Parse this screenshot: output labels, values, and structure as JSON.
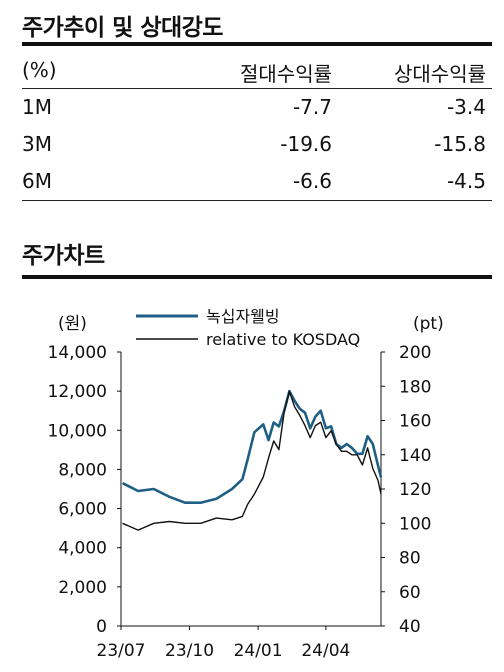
{
  "section1_title": "주가추이 및 상대강도",
  "table": {
    "headers": [
      "(%)",
      "절대수익률",
      "상대수익률"
    ],
    "rows": [
      {
        "period": "1M",
        "absolute": "-7.7",
        "relative": "-3.4"
      },
      {
        "period": "3M",
        "absolute": "-19.6",
        "relative": "-15.8"
      },
      {
        "period": "6M",
        "absolute": "-6.6",
        "relative": "-4.5"
      }
    ]
  },
  "section2_title": "주가차트",
  "chart_data": {
    "type": "line",
    "left_axis_label": "(원)",
    "right_axis_label": "(pt)",
    "left_ticks": [
      "14,000",
      "12,000",
      "10,000",
      "8,000",
      "6,000",
      "4,000",
      "2,000",
      "0"
    ],
    "right_ticks": [
      "200",
      "180",
      "160",
      "140",
      "120",
      "100",
      "80",
      "60",
      "40"
    ],
    "x_ticks": [
      "23/07",
      "23/10",
      "24/01",
      "24/04"
    ],
    "ylim_left": [
      0,
      14000
    ],
    "ylim_right": [
      40,
      200
    ],
    "series": [
      {
        "name": "녹십자웰빙",
        "axis": "left",
        "color": "#1f5f85",
        "x": [
          "2023-07-03",
          "2023-07-24",
          "2023-08-14",
          "2023-09-04",
          "2023-09-25",
          "2023-10-16",
          "2023-11-06",
          "2023-11-27",
          "2023-12-11",
          "2023-12-18",
          "2023-12-27",
          "2024-01-08",
          "2024-01-15",
          "2024-01-22",
          "2024-01-29",
          "2024-02-05",
          "2024-02-12",
          "2024-02-19",
          "2024-02-26",
          "2024-03-04",
          "2024-03-11",
          "2024-03-18",
          "2024-03-25",
          "2024-04-01",
          "2024-04-08",
          "2024-04-15",
          "2024-04-22",
          "2024-04-29",
          "2024-05-06",
          "2024-05-13",
          "2024-05-20",
          "2024-05-27",
          "2024-06-03",
          "2024-06-10",
          "2024-06-14"
        ],
        "values": [
          7300,
          6900,
          7000,
          6600,
          6300,
          6300,
          6500,
          7000,
          7500,
          8500,
          9900,
          10300,
          9500,
          10400,
          10200,
          11000,
          12000,
          11500,
          11100,
          10900,
          10100,
          10700,
          11000,
          10100,
          10200,
          9300,
          9100,
          9300,
          9100,
          8800,
          8800,
          9700,
          9300,
          8200,
          7600
        ]
      },
      {
        "name": "relative to KOSDAQ",
        "axis": "right",
        "color": "#111111",
        "x": [
          "2023-07-03",
          "2023-07-24",
          "2023-08-14",
          "2023-09-04",
          "2023-09-25",
          "2023-10-16",
          "2023-11-06",
          "2023-11-27",
          "2023-12-11",
          "2023-12-18",
          "2023-12-27",
          "2024-01-08",
          "2024-01-15",
          "2024-01-22",
          "2024-01-29",
          "2024-02-05",
          "2024-02-12",
          "2024-02-19",
          "2024-02-26",
          "2024-03-04",
          "2024-03-11",
          "2024-03-18",
          "2024-03-25",
          "2024-04-01",
          "2024-04-08",
          "2024-04-15",
          "2024-04-22",
          "2024-04-29",
          "2024-05-06",
          "2024-05-13",
          "2024-05-20",
          "2024-05-27",
          "2024-06-03",
          "2024-06-10",
          "2024-06-14"
        ],
        "values": [
          100,
          96,
          100,
          101,
          100,
          100,
          103,
          102,
          104,
          111,
          117,
          127,
          138,
          148,
          143,
          165,
          177,
          168,
          163,
          157,
          150,
          157,
          159,
          150,
          154,
          146,
          142,
          142,
          140,
          140,
          134,
          144,
          132,
          125,
          117
        ]
      }
    ]
  }
}
